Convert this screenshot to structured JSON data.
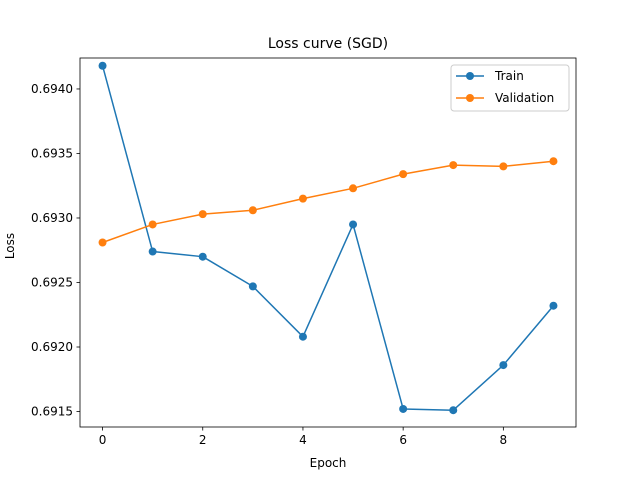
{
  "chart_data": {
    "type": "line",
    "title": "Loss curve (SGD)",
    "xlabel": "Epoch",
    "ylabel": "Loss",
    "xlim": [
      -0.45,
      9.45
    ],
    "ylim": [
      0.69138,
      0.69424
    ],
    "xticks": [
      0,
      2,
      4,
      6,
      8
    ],
    "yticks": [
      0.6915,
      0.692,
      0.6925,
      0.693,
      0.6935,
      0.694
    ],
    "ytick_labels": [
      "0.6915",
      "0.6920",
      "0.6925",
      "0.6930",
      "0.6935",
      "0.6940"
    ],
    "x": [
      0,
      1,
      2,
      3,
      4,
      5,
      6,
      7,
      8,
      9
    ],
    "grid": false,
    "legend_position": "top-right",
    "series": [
      {
        "name": "Train",
        "color": "#1f77b4",
        "values": [
          0.69418,
          0.69274,
          0.6927,
          0.69247,
          0.69208,
          0.69295,
          0.69152,
          0.69151,
          0.69186,
          0.69232
        ]
      },
      {
        "name": "Validation",
        "color": "#ff7f0e",
        "values": [
          0.69281,
          0.69295,
          0.69303,
          0.69306,
          0.69315,
          0.69323,
          0.69334,
          0.69341,
          0.6934,
          0.69344
        ]
      }
    ]
  }
}
